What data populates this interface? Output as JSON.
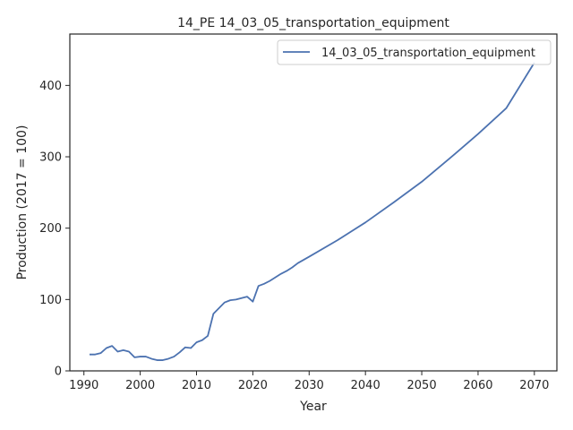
{
  "chart_data": {
    "type": "line",
    "title": "14_PE 14_03_05_transportation_equipment",
    "xlabel": "Year",
    "ylabel": "Production (2017 = 100)",
    "xlim": [
      1987.5,
      2074
    ],
    "ylim": [
      0,
      472
    ],
    "xticks": [
      1990,
      2000,
      2010,
      2020,
      2030,
      2040,
      2050,
      2060,
      2070
    ],
    "yticks": [
      0,
      100,
      200,
      300,
      400
    ],
    "legend_position": "top-right",
    "series": [
      {
        "name": "14_03_05_transportation_equipment",
        "color": "#4c72b0",
        "x": [
          1991,
          1992,
          1993,
          1994,
          1995,
          1996,
          1997,
          1998,
          1999,
          2000,
          2001,
          2002,
          2003,
          2004,
          2005,
          2006,
          2007,
          2008,
          2009,
          2010,
          2011,
          2012,
          2013,
          2014,
          2015,
          2016,
          2017,
          2018,
          2019,
          2020,
          2021,
          2022,
          2023,
          2024,
          2025,
          2026,
          2027,
          2028,
          2030,
          2035,
          2040,
          2045,
          2050,
          2055,
          2060,
          2065,
          2070
        ],
        "y": [
          23,
          23,
          25,
          32,
          35,
          27,
          29,
          27,
          19,
          20,
          20,
          17,
          15,
          15,
          17,
          20,
          26,
          33,
          32,
          40,
          43,
          49,
          80,
          88,
          96,
          99,
          100,
          102,
          104,
          97,
          119,
          122,
          126,
          131,
          136,
          140,
          145,
          151,
          160,
          183,
          208,
          236,
          265,
          298,
          332,
          368,
          432
        ]
      }
    ]
  }
}
